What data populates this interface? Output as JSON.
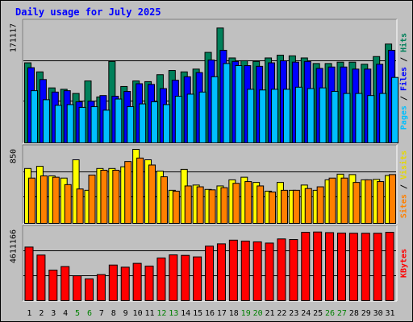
{
  "title": "Daily usage for July 2025",
  "chart_data": [
    {
      "type": "bar",
      "panel": "hits-files-pages",
      "x": [
        "1",
        "2",
        "3",
        "4",
        "5",
        "6",
        "7",
        "8",
        "9",
        "10",
        "11",
        "12",
        "13",
        "14",
        "15",
        "16",
        "17",
        "18",
        "19",
        "20",
        "21",
        "22",
        "23",
        "24",
        "25",
        "26",
        "27",
        "28",
        "29",
        "30",
        "31"
      ],
      "weekend_days": [
        "5",
        "6",
        "12",
        "13",
        "19",
        "20",
        "26",
        "27"
      ],
      "y_max_label": "171117",
      "ylim": [
        0,
        171117
      ],
      "series": [
        {
          "name": "Hits",
          "color": "#00805a",
          "values": [
            115000,
            102000,
            79000,
            77000,
            71000,
            89000,
            66000,
            117000,
            81000,
            89000,
            88000,
            98000,
            104000,
            102000,
            106000,
            130000,
            165000,
            122000,
            118000,
            117000,
            122000,
            126000,
            125000,
            122000,
            114000,
            114000,
            116000,
            116000,
            113000,
            124000,
            142000
          ]
        },
        {
          "name": "Files",
          "color": "#0000ff",
          "values": [
            108000,
            91000,
            73000,
            75000,
            59000,
            60000,
            68000,
            67000,
            74000,
            85000,
            84000,
            78000,
            90000,
            95000,
            101000,
            119000,
            133000,
            117000,
            111000,
            110000,
            115000,
            118000,
            116000,
            117000,
            107000,
            109000,
            109000,
            106000,
            106000,
            113000,
            133000
          ]
        },
        {
          "name": "Pages",
          "color": "#00bfff",
          "values": [
            75000,
            62000,
            54000,
            55000,
            51000,
            52000,
            47000,
            63000,
            52000,
            56000,
            59000,
            55000,
            67000,
            70000,
            73000,
            95000,
            114000,
            111000,
            77000,
            76000,
            77000,
            77000,
            80000,
            78000,
            79000,
            74000,
            71000,
            71000,
            68000,
            71000,
            94000
          ]
        }
      ]
    },
    {
      "type": "bar",
      "panel": "visits-sites",
      "x": [
        "1",
        "2",
        "3",
        "4",
        "5",
        "6",
        "7",
        "8",
        "9",
        "10",
        "11",
        "12",
        "13",
        "14",
        "15",
        "16",
        "17",
        "18",
        "19",
        "20",
        "21",
        "22",
        "23",
        "24",
        "25",
        "26",
        "27",
        "28",
        "29",
        "30",
        "31"
      ],
      "y_max_label": "850",
      "ylim": [
        0,
        850
      ],
      "series": [
        {
          "name": "Visits",
          "color": "#ffff00",
          "values": [
            630,
            655,
            545,
            520,
            730,
            380,
            630,
            630,
            650,
            850,
            730,
            600,
            380,
            620,
            440,
            390,
            430,
            500,
            530,
            470,
            370,
            470,
            380,
            440,
            380,
            500,
            565,
            560,
            500,
            505,
            550
          ]
        },
        {
          "name": "Sites",
          "color": "#ff8000",
          "values": [
            520,
            545,
            530,
            445,
            395,
            555,
            610,
            610,
            710,
            750,
            670,
            535,
            370,
            430,
            420,
            385,
            410,
            460,
            480,
            430,
            360,
            380,
            380,
            400,
            420,
            520,
            520,
            470,
            500,
            480,
            560
          ]
        }
      ]
    },
    {
      "type": "bar",
      "panel": "kbytes",
      "x": [
        "1",
        "2",
        "3",
        "4",
        "5",
        "6",
        "7",
        "8",
        "9",
        "10",
        "11",
        "12",
        "13",
        "14",
        "15",
        "16",
        "17",
        "18",
        "19",
        "20",
        "21",
        "22",
        "23",
        "24",
        "25",
        "26",
        "27",
        "28",
        "29",
        "30",
        "31"
      ],
      "y_max_label": "4611166",
      "ylim": [
        0,
        4611166
      ],
      "series": [
        {
          "name": "KBytes",
          "color": "#ff0000",
          "values": [
            3490000,
            2970000,
            1990000,
            2220000,
            1620000,
            1420000,
            1700000,
            2320000,
            2180000,
            2430000,
            2250000,
            2780000,
            2980000,
            2950000,
            2850000,
            3550000,
            3700000,
            3940000,
            3880000,
            3830000,
            3750000,
            4020000,
            3980000,
            4450000,
            4470000,
            4430000,
            4400000,
            4390000,
            4390000,
            4390000,
            4450000
          ]
        }
      ]
    }
  ],
  "right_labels": {
    "top": [
      {
        "text": "Pages",
        "color": "#00bfff"
      },
      {
        "text": " / ",
        "color": "#000000"
      },
      {
        "text": "Files",
        "color": "#0000ff"
      },
      {
        "text": " / ",
        "color": "#000000"
      },
      {
        "text": "Hits",
        "color": "#00805a"
      }
    ],
    "mid": [
      {
        "text": "Sites",
        "color": "#ff8000"
      },
      {
        "text": " / ",
        "color": "#000000"
      },
      {
        "text": "Visits",
        "color": "#e6d800"
      }
    ],
    "bottom": [
      {
        "text": "KBytes",
        "color": "#ff0000"
      }
    ]
  },
  "colors": {
    "background": "#c0c0c0",
    "plot_bg": "#c0c0c0",
    "weekday_label": "#000000",
    "weekend_label": "#008000",
    "title": "#0000ff"
  }
}
